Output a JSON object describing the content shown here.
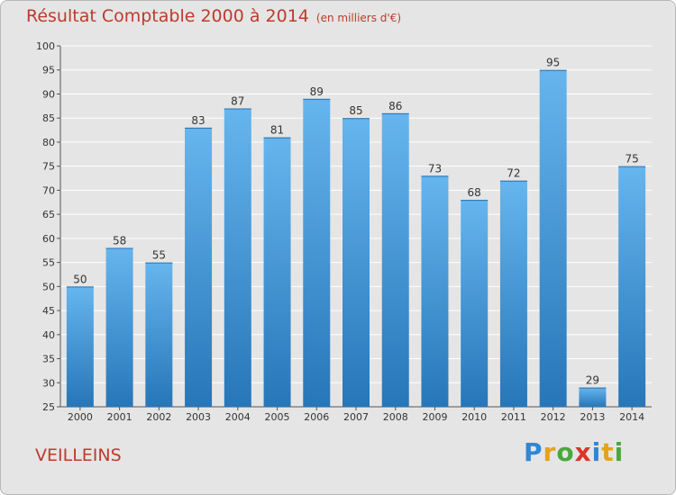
{
  "title": "Résultat Comptable 2000 à 2014",
  "subtitle": "(en milliers d'€)",
  "commune": "VEILLEINS",
  "logo": {
    "letters": [
      "P",
      "r",
      "o",
      "x",
      "i",
      "t",
      "i"
    ]
  },
  "colors": {
    "bar_top": "#66b5ee",
    "bar_bottom": "#2776b8",
    "title": "#c0392b",
    "background": "#e5e5e5"
  },
  "chart_data": {
    "type": "bar",
    "categories": [
      "2000",
      "2001",
      "2002",
      "2003",
      "2004",
      "2005",
      "2006",
      "2007",
      "2008",
      "2009",
      "2010",
      "2011",
      "2012",
      "2013",
      "2014"
    ],
    "values": [
      50,
      58,
      55,
      83,
      87,
      81,
      89,
      85,
      86,
      73,
      68,
      72,
      95,
      29,
      75
    ],
    "data_labels": [
      "50",
      "58",
      "55",
      "83",
      "87",
      "81",
      "89",
      "85",
      "86",
      "73",
      "68",
      "72",
      "95",
      "29",
      "75"
    ],
    "ylim": [
      25,
      100
    ],
    "yticks": [
      25,
      30,
      35,
      40,
      45,
      50,
      55,
      60,
      65,
      70,
      75,
      80,
      85,
      90,
      95,
      100
    ],
    "ytick_labels": [
      "25",
      "30",
      "35",
      "40",
      "45",
      "50",
      "55",
      "60",
      "65",
      "70",
      "75",
      "80",
      "85",
      "90",
      "95",
      "100"
    ],
    "grid": "horizontal",
    "legend": "none"
  }
}
